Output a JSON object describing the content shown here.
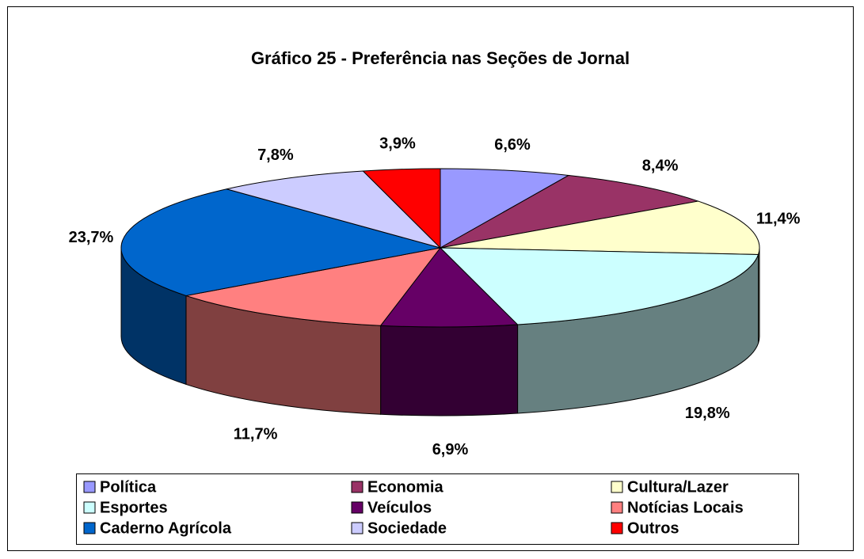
{
  "chart_data": {
    "type": "pie3d",
    "title": "Gráfico 25 - Preferência nas Seções de Jornal",
    "categories": [
      "Política",
      "Economia",
      "Cultura/Lazer",
      "Esportes",
      "Veículos",
      "Notícias Locais",
      "Caderno Agrícola",
      "Sociedade",
      "Outros"
    ],
    "values": [
      6.6,
      8.4,
      11.4,
      19.8,
      6.9,
      11.7,
      23.7,
      7.8,
      3.9
    ],
    "value_labels": [
      "6,6%",
      "8,4%",
      "11,4%",
      "19,8%",
      "6,9%",
      "11,7%",
      "23,7%",
      "7,8%",
      "3,9%"
    ],
    "colors": [
      "#9999ff",
      "#993366",
      "#ffffcc",
      "#ccffff",
      "#660066",
      "#ff8080",
      "#0066cc",
      "#ccccff",
      "#ff0000"
    ],
    "legend": "bottom"
  }
}
